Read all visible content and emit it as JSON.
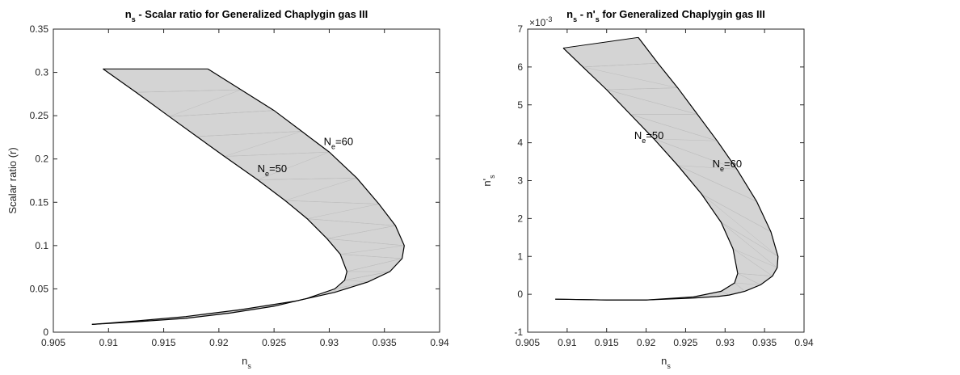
{
  "chart_data": [
    {
      "type": "area",
      "title": {
        "main": "n",
        "sub": "s",
        "rest": " - Scalar ratio for Generalized Chaplygin gas III"
      },
      "xlabel": {
        "main": "n",
        "sub": "s"
      },
      "ylabel": "Scalar ratio (r)",
      "xlim": [
        0.905,
        0.94
      ],
      "ylim": [
        0,
        0.35
      ],
      "xticks": [
        "0.905",
        "0.91",
        "0.915",
        "0.92",
        "0.925",
        "0.93",
        "0.935",
        "0.94"
      ],
      "yticks": [
        "0",
        "0.05",
        "0.1",
        "0.15",
        "0.2",
        "0.25",
        "0.3",
        "0.35"
      ],
      "exponent_label": "",
      "annotations": [
        {
          "main": "N",
          "sub": "e",
          "rest": "=50",
          "at": [
            0.9235,
            0.185
          ]
        },
        {
          "main": "N",
          "sub": "e",
          "rest": "=60",
          "at": [
            0.9295,
            0.216
          ]
        }
      ],
      "fill_color": "#d4d4d4",
      "series": [
        {
          "name": "N_e=50",
          "x": [
            0.9095,
            0.9125,
            0.9155,
            0.918,
            0.9205,
            0.9235,
            0.926,
            0.928,
            0.9298,
            0.931,
            0.9316,
            0.9314,
            0.9305,
            0.928,
            0.925,
            0.921,
            0.917,
            0.9125,
            0.9085
          ],
          "y": [
            0.304,
            0.277,
            0.249,
            0.226,
            0.203,
            0.176,
            0.152,
            0.131,
            0.108,
            0.09,
            0.07,
            0.06,
            0.05,
            0.039,
            0.03,
            0.022,
            0.016,
            0.012,
            0.009
          ]
        },
        {
          "name": "N_e=60",
          "x": [
            0.919,
            0.922,
            0.925,
            0.9275,
            0.93,
            0.9325,
            0.9345,
            0.936,
            0.9368,
            0.9366,
            0.9355,
            0.9335,
            0.9305,
            0.927,
            0.922,
            0.917,
            0.9125,
            0.9085
          ],
          "y": [
            0.304,
            0.28,
            0.256,
            0.232,
            0.208,
            0.178,
            0.148,
            0.123,
            0.1,
            0.085,
            0.07,
            0.058,
            0.046,
            0.036,
            0.026,
            0.018,
            0.013,
            0.009
          ]
        }
      ]
    },
    {
      "type": "area",
      "title": {
        "main": "n",
        "sub": "s",
        "rest": " - n'",
        "sub2": "s",
        "rest2": " for Generalized Chaplygin gas III"
      },
      "xlabel": {
        "main": "n",
        "sub": "s"
      },
      "ylabel": {
        "main": "n'",
        "sub": "s"
      },
      "xlim": [
        0.905,
        0.94
      ],
      "ylim": [
        -1,
        7
      ],
      "xticks": [
        "0.905",
        "0.91",
        "0.915",
        "0.92",
        "0.925",
        "0.93",
        "0.935",
        "0.94"
      ],
      "yticks": [
        "-1",
        "0",
        "1",
        "2",
        "3",
        "4",
        "5",
        "6",
        "7"
      ],
      "exponent_label": "×10",
      "exponent_power": "-3",
      "annotations": [
        {
          "main": "N",
          "sub": "e",
          "rest": "=50",
          "at": [
            0.9185,
            4.1
          ]
        },
        {
          "main": "N",
          "sub": "e",
          "rest": "=60",
          "at": [
            0.9284,
            3.35
          ]
        }
      ],
      "fill_color": "#d4d4d4",
      "series": [
        {
          "name": "N_e=50",
          "x": [
            0.9095,
            0.912,
            0.915,
            0.918,
            0.921,
            0.924,
            0.927,
            0.9295,
            0.931,
            0.9316,
            0.9312,
            0.9295,
            0.926,
            0.92,
            0.915,
            0.912,
            0.9085
          ],
          "y": [
            6.5,
            6.0,
            5.4,
            4.75,
            4.1,
            3.4,
            2.65,
            1.9,
            1.2,
            0.55,
            0.3,
            0.08,
            -0.07,
            -0.15,
            -0.15,
            -0.14,
            -0.13
          ]
        },
        {
          "name": "N_e=60",
          "x": [
            0.919,
            0.9215,
            0.924,
            0.9265,
            0.929,
            0.9315,
            0.934,
            0.9358,
            0.9367,
            0.9366,
            0.936,
            0.9345,
            0.9325,
            0.9305,
            0.929,
            0.926,
            0.92,
            0.915,
            0.912,
            0.9085
          ],
          "y": [
            6.78,
            6.1,
            5.45,
            4.75,
            4.05,
            3.3,
            2.45,
            1.65,
            1.0,
            0.7,
            0.48,
            0.25,
            0.08,
            -0.02,
            -0.06,
            -0.1,
            -0.15,
            -0.15,
            -0.14,
            -0.13
          ]
        }
      ]
    }
  ]
}
